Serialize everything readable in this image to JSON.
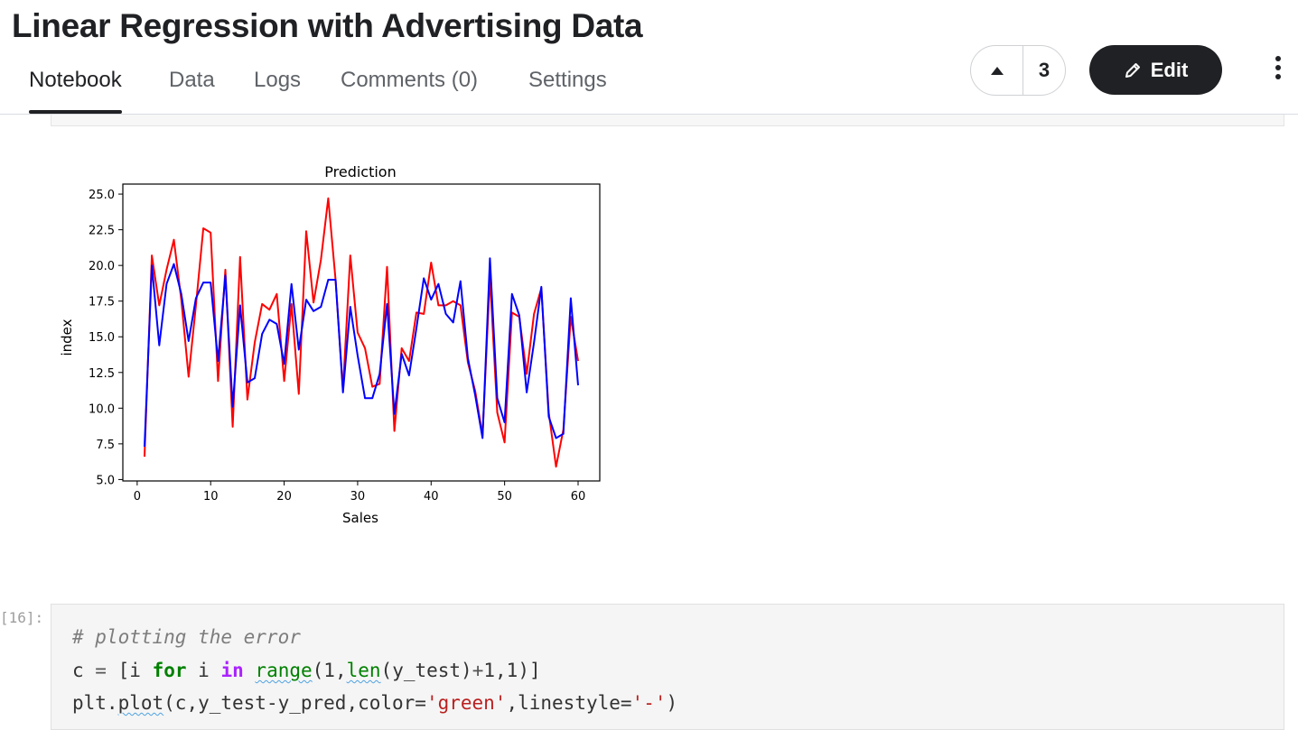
{
  "header": {
    "title": "Linear Regression with Advertising Data",
    "tabs": [
      {
        "label": "Notebook",
        "active": true
      },
      {
        "label": "Data"
      },
      {
        "label": "Logs"
      },
      {
        "label": "Comments (0)"
      },
      {
        "label": "Settings"
      }
    ],
    "upvote_count": "3",
    "edit_label": "Edit"
  },
  "icons": {
    "upvote": "triangle-up-icon",
    "edit": "pencil-icon",
    "more": "vertical-dots-icon"
  },
  "colors": {
    "accent_dark": "#202124",
    "series_actual": "#ff0000",
    "series_predicted": "#0000ff"
  },
  "chart_data": {
    "type": "line",
    "title": "Prediction",
    "xlabel": "Sales",
    "ylabel": "index",
    "xlim": [
      -1.95,
      62.95
    ],
    "ylim": [
      4.9,
      25.7
    ],
    "xticks": [
      "0",
      "10",
      "20",
      "30",
      "40",
      "50",
      "60"
    ],
    "yticks": [
      "5.0",
      "7.5",
      "10.0",
      "12.5",
      "15.0",
      "17.5",
      "20.0",
      "22.5",
      "25.0"
    ],
    "grid": false,
    "x": [
      1,
      2,
      3,
      4,
      5,
      6,
      7,
      8,
      9,
      10,
      11,
      12,
      13,
      14,
      15,
      16,
      17,
      18,
      19,
      20,
      21,
      22,
      23,
      24,
      25,
      26,
      27,
      28,
      29,
      30,
      31,
      32,
      33,
      34,
      35,
      36,
      37,
      38,
      39,
      40,
      41,
      42,
      43,
      44,
      45,
      46,
      47,
      48,
      49,
      50,
      51,
      52,
      53,
      54,
      55,
      56,
      57,
      58,
      59,
      60
    ],
    "series": [
      {
        "color": "#ff0000",
        "values": [
          6.6,
          20.7,
          17.2,
          19.7,
          21.8,
          17.6,
          12.2,
          17.2,
          22.6,
          22.3,
          11.9,
          19.7,
          8.7,
          20.6,
          10.6,
          14.6,
          17.3,
          16.9,
          18.0,
          11.9,
          17.3,
          11.0,
          22.4,
          17.4,
          20.4,
          24.7,
          19.0,
          11.3,
          20.7,
          15.3,
          14.2,
          11.5,
          11.7,
          19.9,
          8.4,
          14.2,
          13.3,
          16.7,
          16.6,
          20.2,
          17.2,
          17.2,
          17.5,
          17.2,
          13.2,
          11.2,
          8.1,
          19.2,
          9.7,
          7.6,
          16.7,
          16.4,
          12.4,
          16.6,
          18.4,
          9.7,
          5.9,
          8.5,
          16.4,
          13.3
        ]
      },
      {
        "color": "#0000ff",
        "values": [
          7.3,
          20.0,
          14.4,
          18.7,
          20.1,
          18.0,
          14.7,
          17.7,
          18.8,
          18.8,
          13.3,
          19.3,
          10.1,
          17.2,
          11.8,
          12.1,
          15.2,
          16.2,
          15.9,
          13.1,
          18.7,
          14.1,
          17.6,
          16.8,
          17.1,
          19.0,
          19.0,
          11.1,
          17.1,
          13.7,
          10.7,
          10.7,
          12.4,
          17.3,
          9.6,
          13.8,
          12.3,
          15.6,
          19.1,
          17.6,
          18.7,
          16.6,
          16.0,
          18.9,
          13.5,
          10.9,
          7.9,
          20.5,
          10.7,
          9.0,
          18.0,
          16.5,
          11.1,
          14.6,
          18.5,
          9.4,
          7.9,
          8.2,
          17.7,
          11.6
        ]
      }
    ]
  },
  "code_cell": {
    "prompt": "[16]:",
    "comment": "# plotting the error",
    "line2": {
      "v": "c",
      "eq": " = ",
      "lb": "[",
      "i": "i",
      "for": "for",
      "i2": "i",
      "in": "in",
      "range": "range",
      "p1": "(",
      "one": "1",
      "comma": ",",
      "len": "len",
      "p2": "(y_test)",
      "plus": "+",
      "one2": "1",
      "comma2": ",",
      "one3": "1",
      "rp": ")]"
    },
    "line3": {
      "pre": "plt.",
      "plot": "plot",
      "args": "(c,y_test-y_pred,color=",
      "s1": "'green'",
      "mid": ",linestyle=",
      "s2": "'-'",
      "end": ")"
    }
  }
}
